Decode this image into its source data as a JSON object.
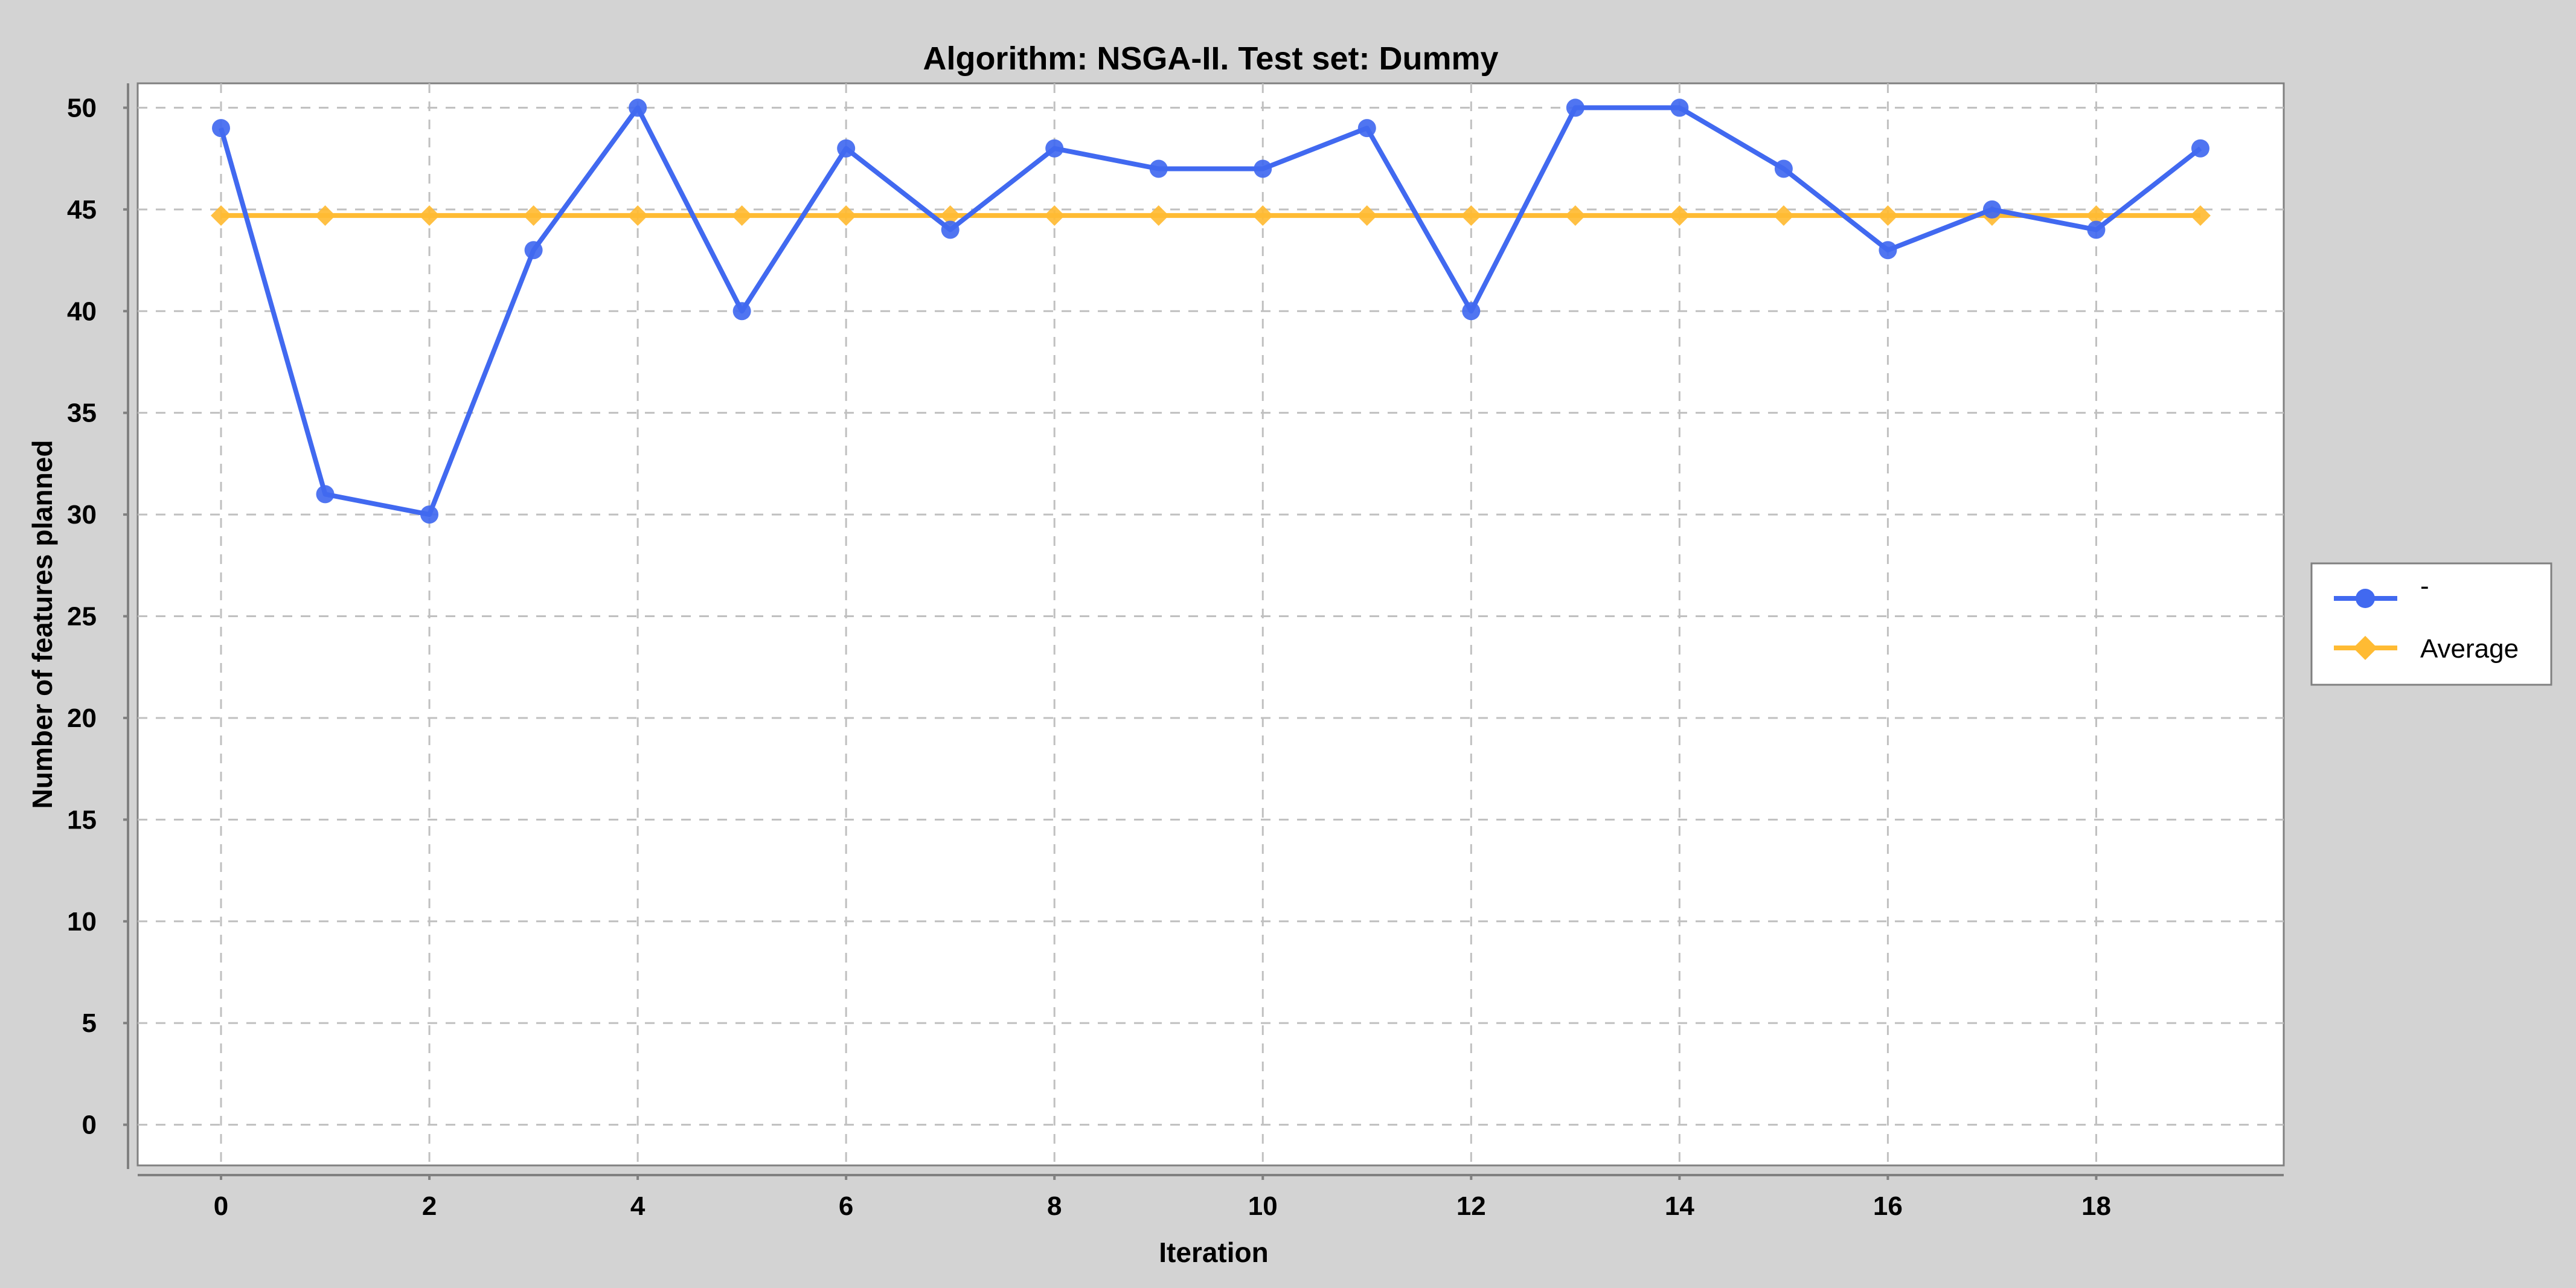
{
  "chart_data": {
    "type": "line",
    "title": "Algorithm: NSGA-II. Test set: Dummy",
    "xlabel": "Iteration",
    "ylabel": "Number of features planned",
    "x": [
      0,
      1,
      2,
      3,
      4,
      5,
      6,
      7,
      8,
      9,
      10,
      11,
      12,
      13,
      14,
      15,
      16,
      17,
      18,
      19
    ],
    "xlim": [
      -0.8,
      19.8
    ],
    "ylim": [
      -2,
      51.2
    ],
    "x_ticks": [
      0,
      2,
      4,
      6,
      8,
      10,
      12,
      14,
      16,
      18
    ],
    "y_ticks": [
      0,
      5,
      10,
      15,
      20,
      25,
      30,
      35,
      40,
      45,
      50
    ],
    "grid": true,
    "legend_position": "right",
    "series": [
      {
        "name": "-",
        "marker": "circle",
        "color": "#4169f0",
        "values": [
          49,
          31,
          30,
          43,
          50,
          40,
          48,
          44,
          48,
          47,
          47,
          49,
          40,
          50,
          50,
          47,
          43,
          45,
          44,
          48
        ]
      },
      {
        "name": "Average",
        "marker": "diamond",
        "color": "#ffbb33",
        "values": [
          44.7,
          44.7,
          44.7,
          44.7,
          44.7,
          44.7,
          44.7,
          44.7,
          44.7,
          44.7,
          44.7,
          44.7,
          44.7,
          44.7,
          44.7,
          44.7,
          44.7,
          44.7,
          44.7,
          44.7
        ]
      }
    ]
  }
}
